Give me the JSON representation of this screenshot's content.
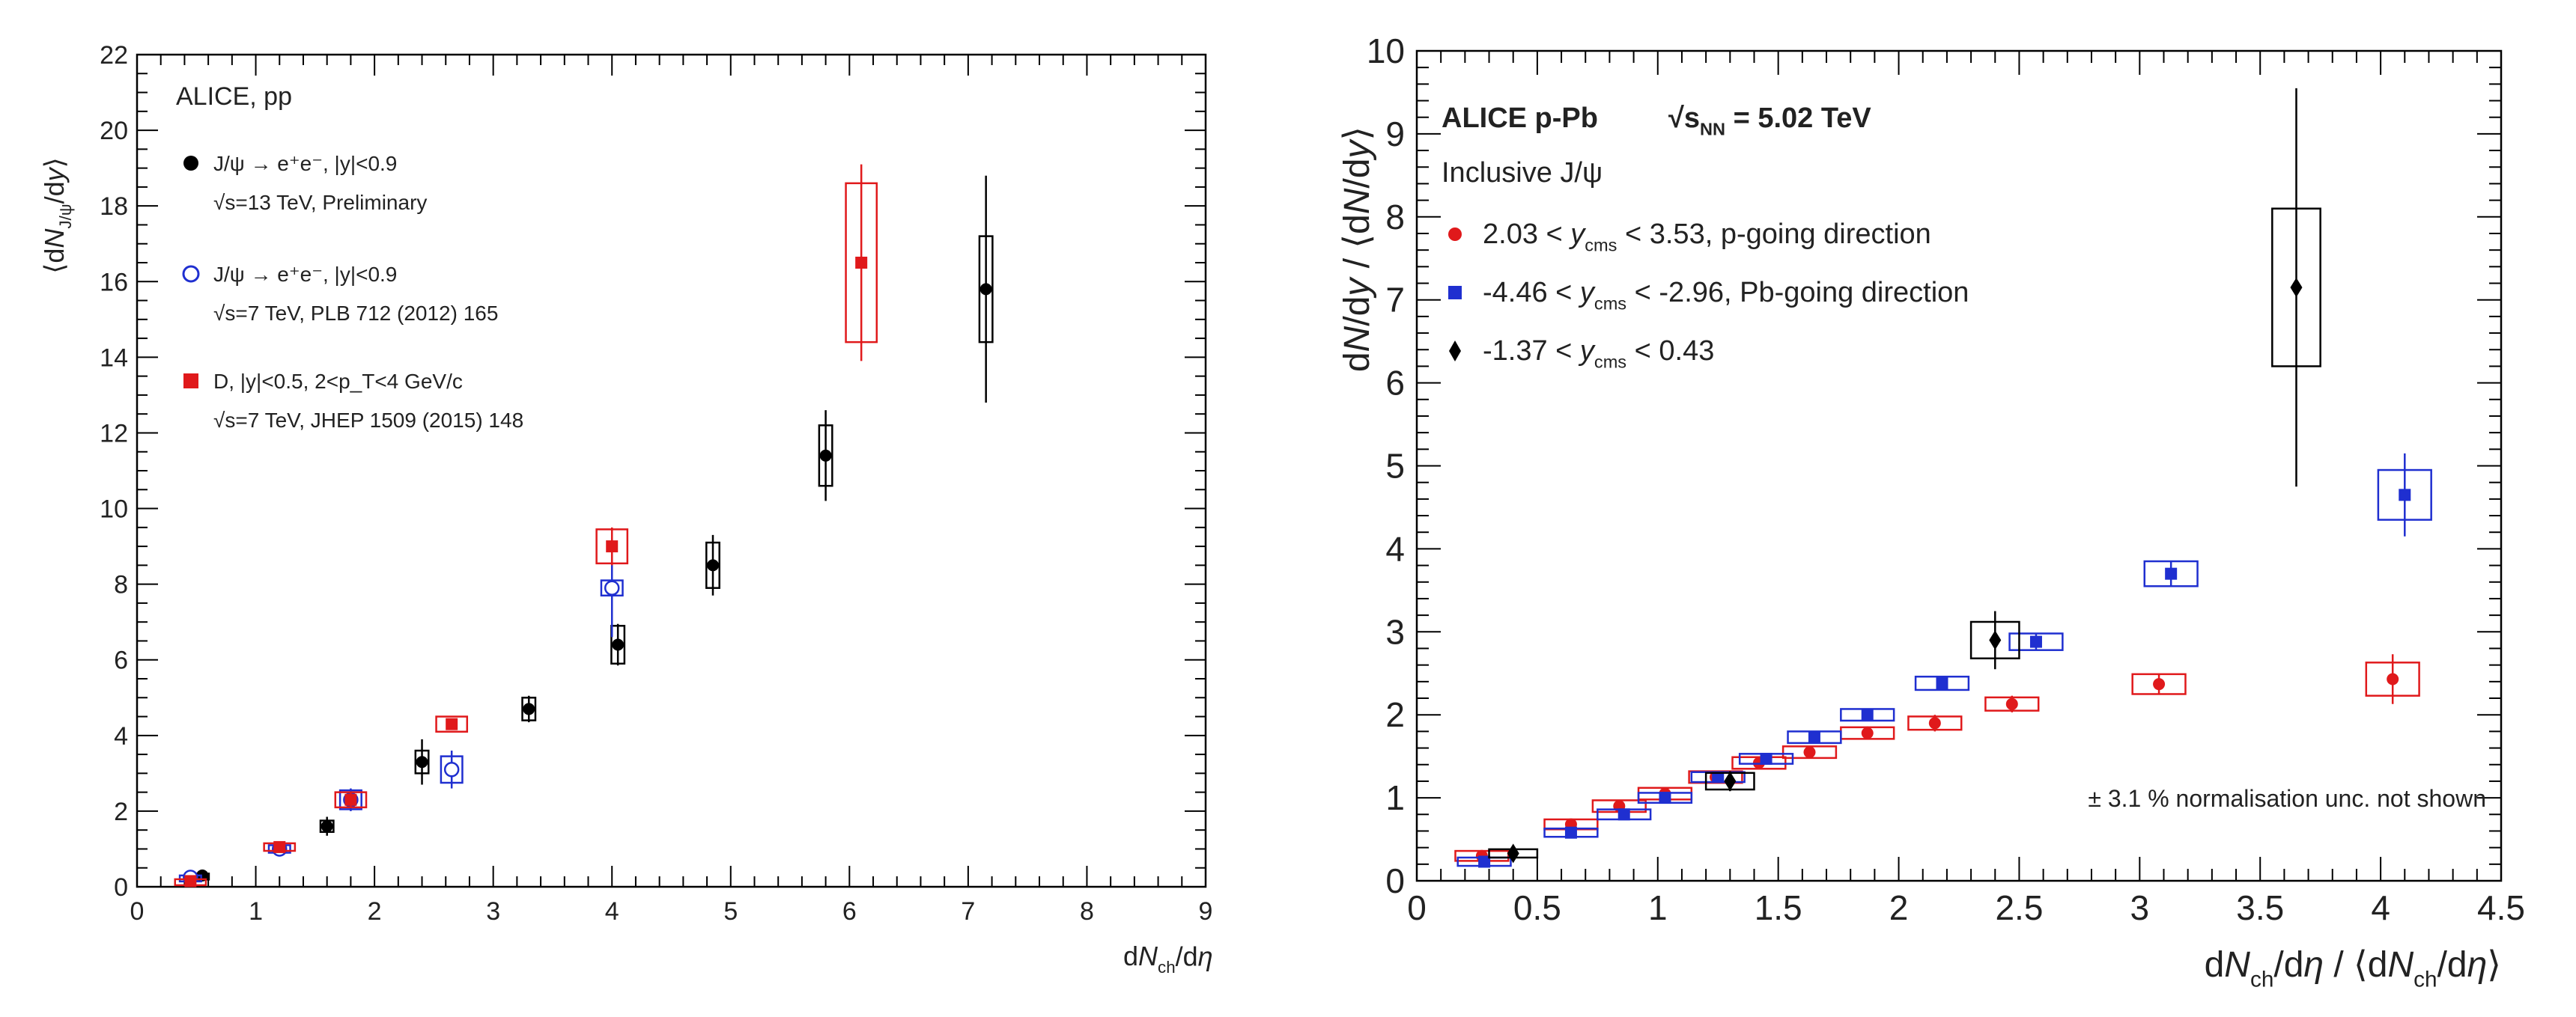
{
  "chart_data": [
    {
      "type": "scatter",
      "experiment": "ALICE, pp",
      "xlabel": "dN_ch/dη",
      "ylabel": "⟨dN_J/ψ/dy⟩",
      "xlim": [
        0,
        9
      ],
      "ylim": [
        0,
        22
      ],
      "x_ticks": [
        0,
        1,
        2,
        3,
        4,
        5,
        6,
        7,
        8,
        9
      ],
      "y_ticks": [
        0,
        2,
        4,
        6,
        8,
        10,
        12,
        14,
        16,
        18,
        20,
        22
      ],
      "legend": [
        {
          "marker": "filled-circle",
          "color": "#000000",
          "line1": "J/ψ → e⁺e⁻, |y|<0.9",
          "line2": "√s=13 TeV, Preliminary"
        },
        {
          "marker": "open-circle",
          "color": "#1f2fd0",
          "line1": "J/ψ → e⁺e⁻, |y|<0.9",
          "line2": "√s=7 TeV, PLB 712 (2012) 165"
        },
        {
          "marker": "filled-square",
          "color": "#e0191b",
          "line1": "D, |y|<0.5, 2<p_T<4 GeV/c",
          "line2": "√s=7 TeV, JHEP 1509 (2015) 148"
        }
      ],
      "series": [
        {
          "name": "J/ψ √s=13 TeV, Preliminary",
          "marker": "filled-circle",
          "color": "#000000",
          "x": [
            0.55,
            1.6,
            2.4,
            3.3,
            4.05,
            4.85,
            5.8,
            7.15
          ],
          "y": [
            0.3,
            1.6,
            3.3,
            4.7,
            6.4,
            8.5,
            11.4,
            15.8
          ],
          "stat_err": [
            0.05,
            0.25,
            0.6,
            0.35,
            0.55,
            0.8,
            1.2,
            3.0
          ],
          "sys_err": [
            0.05,
            0.15,
            0.3,
            0.3,
            0.5,
            0.6,
            0.8,
            1.4
          ]
        },
        {
          "name": "J/ψ √s=7 TeV, PLB 712 (2012) 165",
          "marker": "open-circle",
          "color": "#1f2fd0",
          "x": [
            0.45,
            1.2,
            1.8,
            2.65,
            4.0
          ],
          "y": [
            0.25,
            1.0,
            2.3,
            3.1,
            7.9
          ],
          "stat_err": [
            0.05,
            0.1,
            0.3,
            0.5,
            1.3
          ],
          "sys_err": [
            0.05,
            0.1,
            0.25,
            0.35,
            0.2
          ]
        },
        {
          "name": "D, |y|<0.5, √s=7 TeV, JHEP 1509 (2015) 148",
          "marker": "filled-square",
          "color": "#e0191b",
          "x": [
            0.45,
            1.2,
            1.8,
            2.65,
            4.0,
            6.1
          ],
          "y": [
            0.15,
            1.05,
            2.3,
            4.3,
            9.0,
            16.5
          ],
          "stat_err": [
            0.05,
            0.1,
            0.2,
            0.15,
            0.5,
            2.6
          ],
          "sys_err": [
            0.05,
            0.1,
            0.2,
            0.2,
            0.45,
            2.1
          ]
        }
      ]
    },
    {
      "type": "scatter",
      "experiment": "ALICE p-Pb",
      "energy": "√s_NN = 5.02 TeV",
      "subtitle": "Inclusive J/ψ",
      "note": "± 3.1 % normalisation unc. not shown",
      "xlabel": "dN_ch/dη / ⟨dN_ch/dη⟩",
      "ylabel": "dN/dy / ⟨dN/dy⟩",
      "xlim": [
        0,
        4.5
      ],
      "ylim": [
        0,
        10
      ],
      "x_ticks": [
        0,
        0.5,
        1,
        1.5,
        2,
        2.5,
        3,
        3.5,
        4,
        4.5
      ],
      "y_ticks": [
        0,
        1,
        2,
        3,
        4,
        5,
        6,
        7,
        8,
        9,
        10
      ],
      "legend": [
        {
          "marker": "circle",
          "color": "#e0191b",
          "pre": "2.03 < ",
          "var": "y",
          "sub": "cms",
          "post": " < 3.53, p-going direction"
        },
        {
          "marker": "square",
          "color": "#1f2fd0",
          "pre": "-4.46 < ",
          "var": "y",
          "sub": "cms",
          "post": " < -2.96, Pb-going direction"
        },
        {
          "marker": "diamond",
          "color": "#000000",
          "pre": "-1.37 < ",
          "var": "y",
          "sub": "cms",
          "post": " < 0.43"
        }
      ],
      "series": [
        {
          "name": "2.03 < y_cms < 3.53, p-going direction",
          "marker": "circle",
          "color": "#e0191b",
          "x": [
            0.27,
            0.64,
            0.84,
            1.03,
            1.24,
            1.42,
            1.63,
            1.87,
            2.15,
            2.47,
            3.08,
            4.05
          ],
          "y": [
            0.3,
            0.68,
            0.9,
            1.05,
            1.25,
            1.42,
            1.55,
            1.78,
            1.9,
            2.13,
            2.37,
            2.43
          ],
          "stat_err": [
            0.03,
            0.04,
            0.05,
            0.05,
            0.06,
            0.07,
            0.07,
            0.08,
            0.1,
            0.1,
            0.12,
            0.3
          ],
          "sys_err": [
            0.06,
            0.06,
            0.07,
            0.07,
            0.07,
            0.07,
            0.07,
            0.07,
            0.08,
            0.08,
            0.12,
            0.2
          ]
        },
        {
          "name": "-4.46 < y_cms < -2.96, Pb-going direction",
          "marker": "square",
          "color": "#1f2fd0",
          "x": [
            0.28,
            0.64,
            0.86,
            1.03,
            1.25,
            1.45,
            1.65,
            1.87,
            2.18,
            2.57,
            3.13,
            4.1
          ],
          "y": [
            0.23,
            0.58,
            0.8,
            1.0,
            1.25,
            1.47,
            1.73,
            2.0,
            2.38,
            2.88,
            3.7,
            4.65
          ],
          "stat_err": [
            0.03,
            0.04,
            0.05,
            0.05,
            0.05,
            0.06,
            0.06,
            0.07,
            0.08,
            0.1,
            0.15,
            0.5
          ],
          "sys_err": [
            0.05,
            0.05,
            0.06,
            0.06,
            0.06,
            0.06,
            0.07,
            0.07,
            0.08,
            0.1,
            0.15,
            0.3
          ]
        },
        {
          "name": "-1.37 < y_cms < 0.43",
          "marker": "diamond",
          "color": "#000000",
          "x": [
            0.4,
            1.3,
            2.4,
            3.65
          ],
          "y": [
            0.33,
            1.2,
            2.9,
            7.15
          ],
          "stat_err": [
            0.08,
            0.12,
            0.35,
            2.4
          ],
          "sys_err": [
            0.05,
            0.1,
            0.22,
            0.95
          ]
        }
      ]
    }
  ]
}
